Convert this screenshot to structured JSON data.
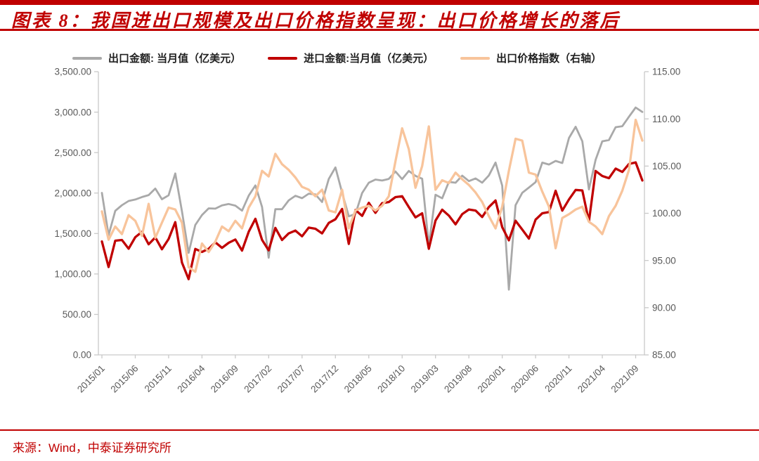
{
  "header": {
    "title": "图表 8：我国进出口规模及出口价格指数呈现：出口价格增长的落后"
  },
  "footer": {
    "source": "来源：Wind，中泰证券研究所"
  },
  "colors": {
    "accent_red": "#C00000",
    "series_export": "#A9A9A9",
    "series_import": "#C00000",
    "series_price_index": "#F8C49B",
    "axis_line": "#C9C9C9",
    "axis_text": "#595959"
  },
  "chart_data": {
    "type": "line",
    "title": "我国进出口规模及出口价格指数",
    "legend_position": "top",
    "grid": false,
    "x_months": [
      "2015/01",
      "2015/02",
      "2015/03",
      "2015/04",
      "2015/05",
      "2015/06",
      "2015/07",
      "2015/08",
      "2015/09",
      "2015/10",
      "2015/11",
      "2015/12",
      "2016/01",
      "2016/02",
      "2016/03",
      "2016/04",
      "2016/05",
      "2016/06",
      "2016/07",
      "2016/08",
      "2016/09",
      "2016/10",
      "2016/11",
      "2016/12",
      "2017/01",
      "2017/02",
      "2017/03",
      "2017/04",
      "2017/05",
      "2017/06",
      "2017/07",
      "2017/08",
      "2017/09",
      "2017/10",
      "2017/11",
      "2017/12",
      "2018/01",
      "2018/02",
      "2018/03",
      "2018/04",
      "2018/05",
      "2018/06",
      "2018/07",
      "2018/08",
      "2018/09",
      "2018/10",
      "2018/11",
      "2018/12",
      "2019/01",
      "2019/02",
      "2019/03",
      "2019/04",
      "2019/05",
      "2019/06",
      "2019/07",
      "2019/08",
      "2019/09",
      "2019/10",
      "2019/11",
      "2019/12",
      "2020/01",
      "2020/02",
      "2020/03",
      "2020/04",
      "2020/05",
      "2020/06",
      "2020/07",
      "2020/08",
      "2020/09",
      "2020/10",
      "2020/11",
      "2020/12",
      "2021/01",
      "2021/02",
      "2021/03",
      "2021/04",
      "2021/05",
      "2021/06",
      "2021/07",
      "2021/08",
      "2021/09",
      "2021/10"
    ],
    "xtick_labels": [
      "2015/01",
      "2015/06",
      "2015/11",
      "2016/04",
      "2016/09",
      "2017/02",
      "2017/07",
      "2017/12",
      "2018/05",
      "2018/10",
      "2019/03",
      "2019/08",
      "2020/01",
      "2020/06",
      "2020/11",
      "2021/04",
      "2021/09"
    ],
    "xtick_every": 5,
    "axes": {
      "left": {
        "min": 0,
        "max": 3500,
        "ticks": [
          {
            "value": 3500,
            "label": "3,500.00"
          },
          {
            "value": 3000,
            "label": "3,000.00"
          },
          {
            "value": 2500,
            "label": "2,500.00"
          },
          {
            "value": 2000,
            "label": "2,000.00"
          },
          {
            "value": 1500,
            "label": "1,500.00"
          },
          {
            "value": 1000,
            "label": "1,000.00"
          },
          {
            "value": 500,
            "label": "500.00"
          },
          {
            "value": 0,
            "label": "0.00"
          }
        ]
      },
      "right": {
        "min": 85,
        "max": 115,
        "ticks": [
          {
            "value": 115,
            "label": "115.00"
          },
          {
            "value": 110,
            "label": "110.00"
          },
          {
            "value": 105,
            "label": "105.00"
          },
          {
            "value": 100,
            "label": "100.00"
          },
          {
            "value": 95,
            "label": "95.00"
          },
          {
            "value": 90,
            "label": "90.00"
          },
          {
            "value": 85,
            "label": "85.00"
          }
        ]
      }
    },
    "series": [
      {
        "name": "出口金额: 当月值（亿美元）",
        "axis": "left",
        "color": "#A9A9A9",
        "stroke_width": 2.8,
        "values": [
          2002,
          1480,
          1780,
          1850,
          1902,
          1920,
          1951,
          1975,
          2056,
          1924,
          1972,
          2242,
          1775,
          1261,
          1606,
          1728,
          1811,
          1807,
          1847,
          1865,
          1845,
          1782,
          1968,
          2094,
          1827,
          1201,
          1801,
          1800,
          1910,
          1966,
          1937,
          1992,
          1983,
          1889,
          2174,
          2317,
          2005,
          1713,
          1741,
          2001,
          2128,
          2167,
          2155,
          2175,
          2267,
          2172,
          2274,
          2212,
          2177,
          1352,
          1979,
          1935,
          2138,
          2128,
          2215,
          2148,
          2181,
          2129,
          2217,
          2377,
          2092,
          807,
          1851,
          2003,
          2068,
          2135,
          2376,
          2353,
          2397,
          2371,
          2680,
          2819,
          2639,
          2044,
          2411,
          2639,
          2656,
          2814,
          2826,
          2943,
          3057,
          3002
        ]
      },
      {
        "name": "进口金额:当月值（亿美元）",
        "axis": "left",
        "color": "#C00000",
        "stroke_width": 3.3,
        "values": [
          1402,
          1086,
          1411,
          1420,
          1312,
          1455,
          1521,
          1367,
          1452,
          1305,
          1432,
          1641,
          1141,
          936,
          1310,
          1272,
          1311,
          1391,
          1323,
          1385,
          1426,
          1289,
          1522,
          1681,
          1421,
          1292,
          1569,
          1420,
          1502,
          1536,
          1466,
          1573,
          1559,
          1502,
          1631,
          1676,
          1804,
          1371,
          1791,
          1718,
          1879,
          1755,
          1875,
          1889,
          1950,
          1961,
          1827,
          1700,
          1750,
          1311,
          1660,
          1794,
          1721,
          1614,
          1740,
          1797,
          1784,
          1704,
          1826,
          1908,
          1579,
          1416,
          1658,
          1549,
          1437,
          1672,
          1750,
          1766,
          2028,
          1783,
          1921,
          2038,
          2032,
          1648,
          2273,
          2211,
          2183,
          2302,
          2261,
          2360,
          2379,
          2156
        ]
      },
      {
        "name": "出口价格指数（右轴）",
        "axis": "right",
        "color": "#F8C49B",
        "stroke_width": 3.3,
        "values": [
          100.2,
          97.2,
          98.6,
          97.8,
          99.8,
          99.2,
          97.6,
          101.0,
          97.4,
          99.0,
          100.6,
          100.4,
          99.0,
          94.3,
          93.8,
          96.8,
          95.9,
          97.0,
          98.6,
          98.1,
          99.2,
          98.4,
          100.6,
          101.8,
          104.5,
          103.9,
          106.3,
          105.2,
          104.6,
          103.8,
          102.8,
          102.5,
          101.8,
          102.5,
          100.3,
          100.1,
          102.5,
          98.4,
          100.3,
          100.6,
          100.8,
          100.3,
          100.8,
          101.8,
          105.5,
          109.0,
          106.8,
          102.7,
          105.0,
          109.2,
          102.5,
          103.5,
          103.2,
          104.3,
          103.6,
          103.0,
          102.2,
          101.2,
          99.7,
          98.4,
          100.7,
          104.5,
          107.9,
          107.7,
          104.3,
          104.1,
          102.3,
          100.7,
          96.3,
          99.5,
          99.9,
          100.4,
          100.7,
          99.1,
          98.6,
          97.8,
          99.7,
          100.8,
          102.4,
          104.6,
          109.9,
          107.7
        ]
      }
    ]
  }
}
